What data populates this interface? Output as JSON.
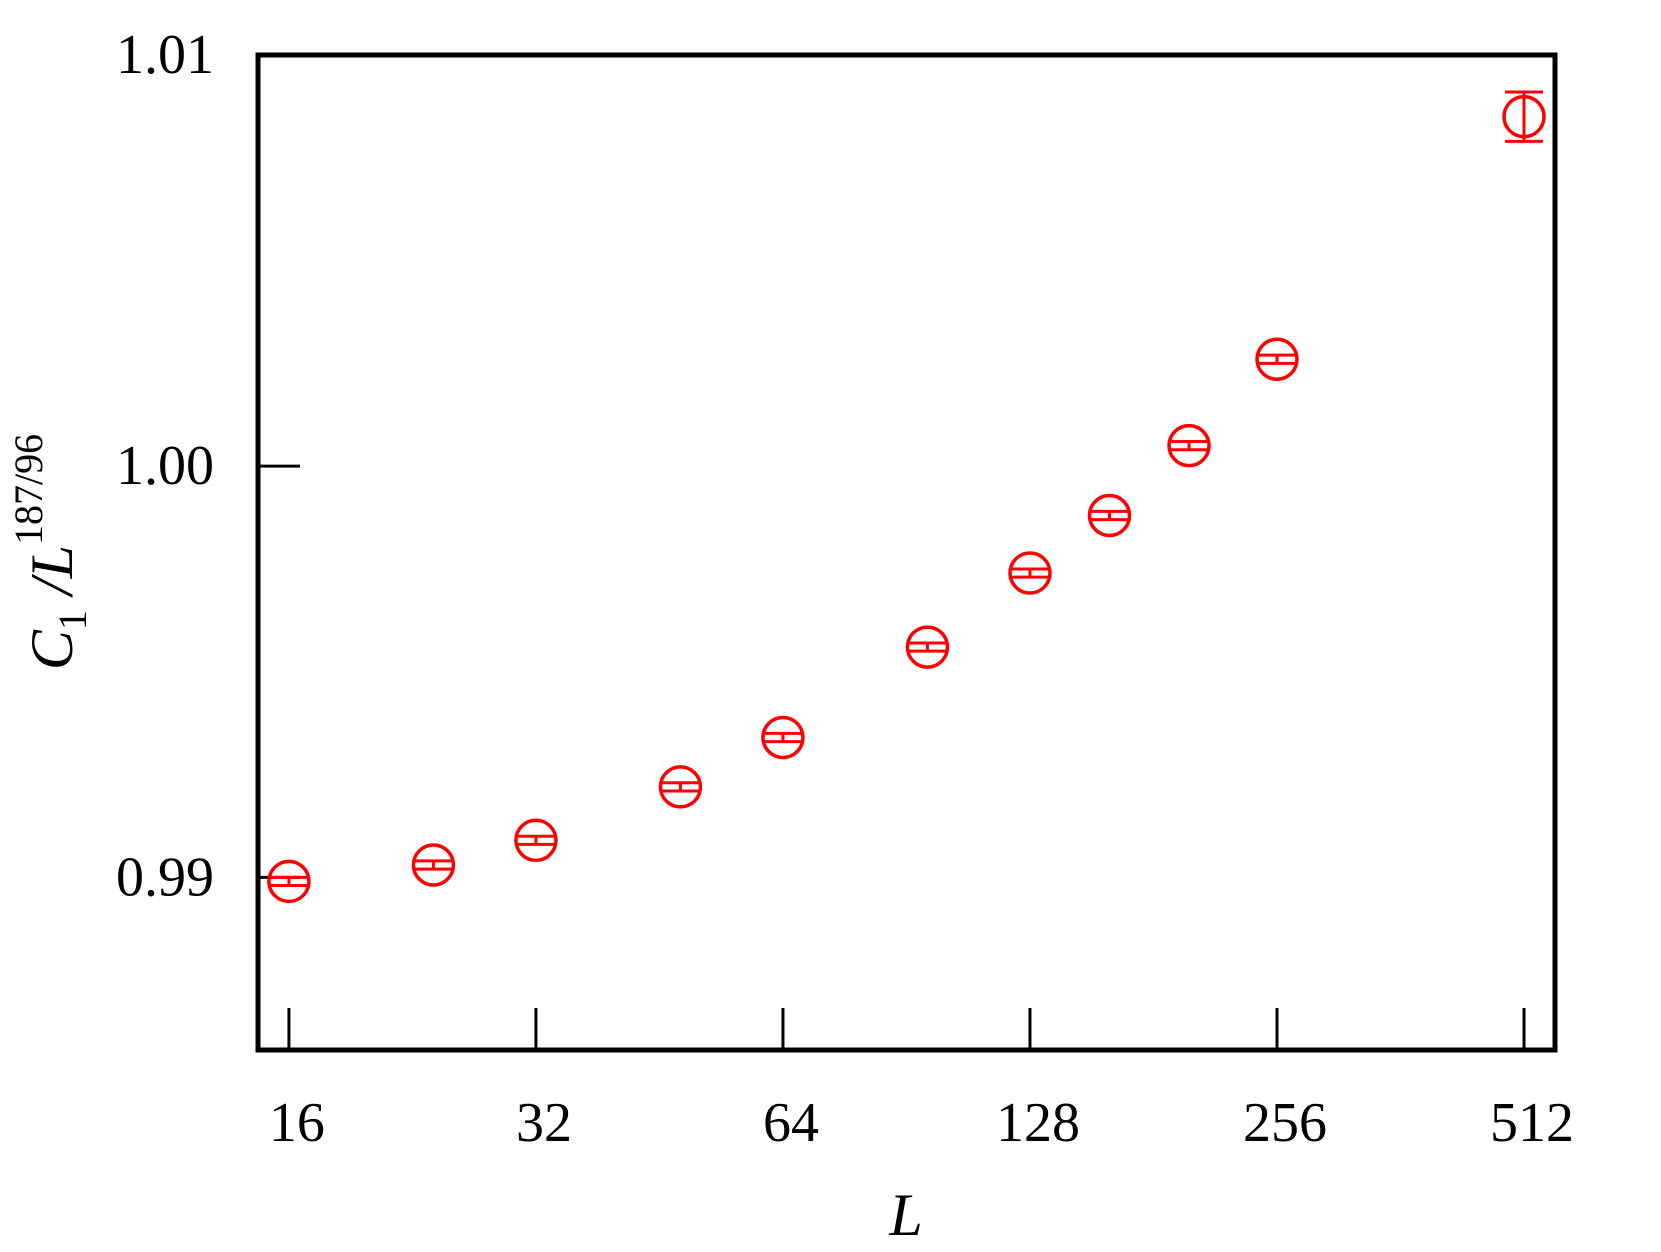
{
  "chart_data": {
    "type": "scatter",
    "title": "",
    "xlabel": "L",
    "ylabel": {
      "main": "C",
      "subscript": "1",
      "divider": " /L",
      "superscript": "187/96"
    },
    "x_scale": "log2",
    "xlim": [
      14.67,
      558.5
    ],
    "ylim": [
      0.9858,
      1.01
    ],
    "x_ticks": [
      16,
      32,
      64,
      128,
      256,
      512
    ],
    "x_tick_labels": [
      "16",
      "32",
      "64",
      "128",
      "256",
      "512"
    ],
    "y_ticks": [
      0.99,
      1.0,
      1.01
    ],
    "y_tick_labels": [
      "0.99",
      "1.00",
      "1.01"
    ],
    "grid": false,
    "legend": "none",
    "marker": "open-circle",
    "color": "#ff0000",
    "series": [
      {
        "x": [
          16,
          24,
          32,
          48,
          64,
          96,
          128,
          160,
          200,
          256,
          512
        ],
        "y": [
          0.9899,
          0.9903,
          0.9909,
          0.9922,
          0.9934,
          0.9956,
          0.9974,
          0.9988,
          1.0005,
          1.0026,
          1.0085
        ],
        "yerr": [
          0.0001,
          0.0001,
          0.0001,
          0.0001,
          0.0001,
          0.0001,
          0.0001,
          0.0001,
          0.0001,
          0.0001,
          0.0006
        ]
      }
    ]
  }
}
